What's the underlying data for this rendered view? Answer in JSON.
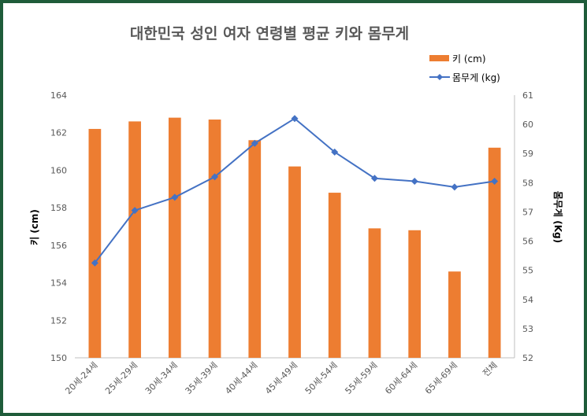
{
  "chart_data": {
    "type": "bar",
    "title": "대한민국 성인 여자 연령별 평균 키와 몸무게",
    "categories": [
      "20세-24세",
      "25세-29세",
      "30세-34세",
      "35세-39세",
      "40세-44세",
      "45세-49세",
      "50세-54세",
      "55세-59세",
      "60세-64세",
      "65세-69세",
      "전체"
    ],
    "series": [
      {
        "name": "키 (cm)",
        "type": "bar",
        "axis": "left",
        "color": "#ed7d31",
        "values": [
          162.2,
          162.6,
          162.8,
          162.7,
          161.6,
          160.2,
          158.8,
          156.9,
          156.8,
          154.6,
          161.2
        ]
      },
      {
        "name": "몸무게 (kg)",
        "type": "line",
        "axis": "right",
        "color": "#4472c4",
        "marker": "diamond",
        "values": [
          55.25,
          57.05,
          57.5,
          58.2,
          59.35,
          60.2,
          59.05,
          58.15,
          58.05,
          57.85,
          58.05
        ]
      }
    ],
    "ylabel": "키 (cm)",
    "y2label": "몸무게 (Kg)",
    "ylim": [
      150,
      164
    ],
    "yticks": [
      150,
      152,
      154,
      156,
      158,
      160,
      162,
      164
    ],
    "y2lim": [
      52,
      61
    ],
    "y2ticks": [
      52,
      53,
      54,
      55,
      56,
      57,
      58,
      59,
      60,
      61
    ],
    "grid": false,
    "legend_position": "top-right"
  }
}
